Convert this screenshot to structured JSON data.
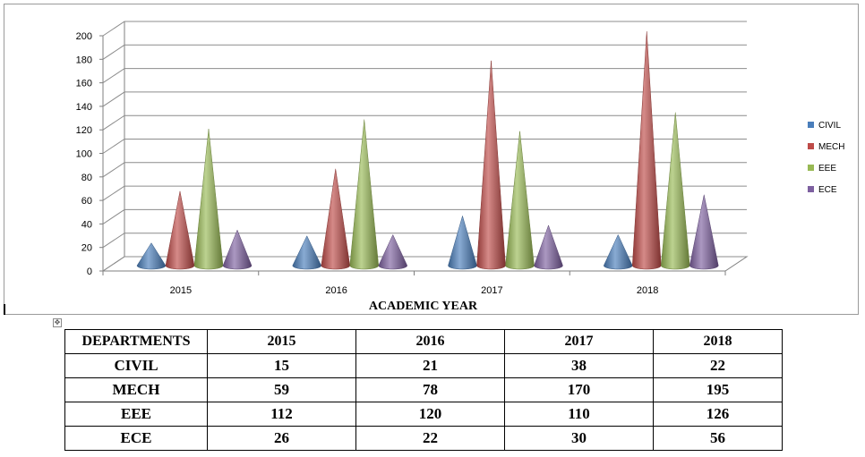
{
  "chart_data": {
    "type": "bar",
    "style": "3d-cone",
    "categories": [
      "2015",
      "2016",
      "2017",
      "2018"
    ],
    "series": [
      {
        "name": "CIVIL",
        "values": [
          15,
          21,
          38,
          22
        ],
        "color": "#4a7ebb"
      },
      {
        "name": "MECH",
        "values": [
          59,
          78,
          170,
          195
        ],
        "color": "#be4b48"
      },
      {
        "name": "EEE",
        "values": [
          112,
          120,
          110,
          126
        ],
        "color": "#98b954"
      },
      {
        "name": "ECE",
        "values": [
          26,
          22,
          30,
          56
        ],
        "color": "#7d60a0"
      }
    ],
    "y_ticks": [
      "0",
      "20",
      "40",
      "60",
      "80",
      "100",
      "120",
      "140",
      "160",
      "180",
      "200"
    ],
    "ylim": [
      0,
      200
    ],
    "xlabel": "ACADEMIC YEAR",
    "ylabel": "",
    "title": "",
    "grid": true,
    "legend": "right"
  },
  "table": {
    "header": [
      "DEPARTMENTS",
      "2015",
      "2016",
      "2017",
      "2018"
    ],
    "rows": [
      [
        "CIVIL",
        "15",
        "21",
        "38",
        "22"
      ],
      [
        "MECH",
        "59",
        "78",
        "170",
        "195"
      ],
      [
        "EEE",
        "112",
        "120",
        "110",
        "126"
      ],
      [
        "ECE",
        "26",
        "22",
        "30",
        "56"
      ]
    ]
  },
  "icons": {
    "move_handle": "move-arrows-icon"
  }
}
